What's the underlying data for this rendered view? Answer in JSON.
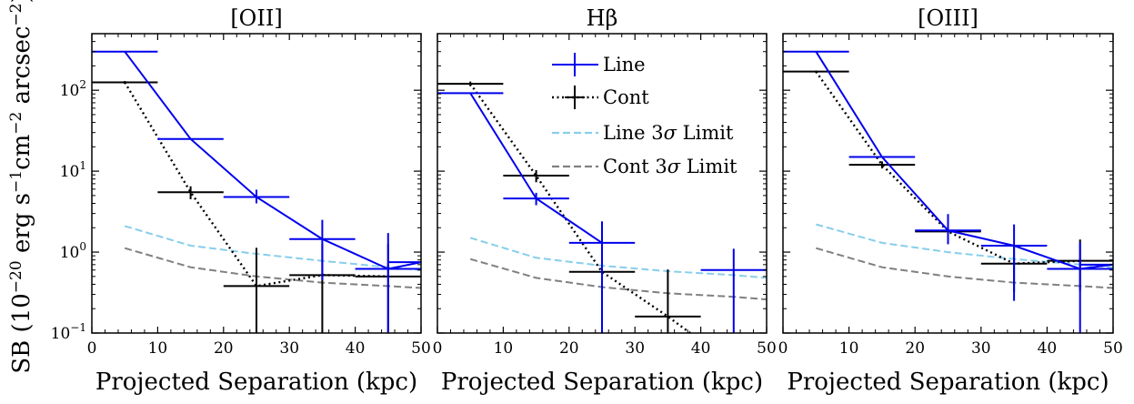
{
  "figure": {
    "ylabel": "SB (10",
    "ylabel_exp1": "−20",
    "ylabel_mid": " erg s",
    "ylabel_exp2": "−1",
    "ylabel_mid2": "cm",
    "ylabel_exp3": "−2",
    "ylabel_end": " arcsec",
    "ylabel_exp4": "−2",
    "ylabel_close": ")",
    "xlabel": "Projected Separation (kpc)"
  },
  "colors": {
    "line": "#0000ee",
    "cont": "#000000",
    "line_limit": "#87ceeb",
    "cont_limit": "#808080"
  },
  "legend": {
    "line": "Line",
    "cont": "Cont",
    "line_limit_pre": "Line 3",
    "line_limit_sym": "σ",
    "line_limit_post": " Limit",
    "cont_limit_pre": "Cont 3",
    "cont_limit_sym": "σ",
    "cont_limit_post": " Limit"
  },
  "chart_data": [
    {
      "type": "line",
      "title": "[OII]",
      "xlabel": "Projected Separation (kpc)",
      "ylabel": "SB (10^-20 erg s^-1 cm^-2 arcsec^-2)",
      "xlim": [
        0,
        50
      ],
      "ylim": [
        0.1,
        500
      ],
      "yscale": "log",
      "xticks": [
        0,
        10,
        20,
        30,
        40,
        50
      ],
      "yticks": [
        0.1,
        1,
        10,
        100
      ],
      "series": [
        {
          "key": "line",
          "name": "Line",
          "x": [
            5,
            15,
            25,
            35,
            45,
            50
          ],
          "y": [
            300,
            25,
            4.8,
            1.45,
            0.62,
            0.75
          ],
          "xerr": [
            5,
            5,
            5,
            5,
            5,
            5
          ],
          "yerr_low": [
            0,
            0,
            0.8,
            1.0,
            0.52,
            0
          ],
          "yerr_high": [
            0,
            0,
            1.1,
            1.05,
            1.1,
            0
          ]
        },
        {
          "key": "cont",
          "name": "Cont",
          "x": [
            5,
            15,
            25,
            35,
            45
          ],
          "y": [
            125,
            5.5,
            0.38,
            0.52,
            0.5
          ],
          "xerr": [
            5,
            5,
            5,
            5,
            5
          ],
          "yerr_low": [
            5,
            1.0,
            0.3,
            0.43,
            0.4
          ],
          "yerr_high": [
            5,
            1.0,
            0.75,
            0.73,
            0.75
          ]
        },
        {
          "key": "line_limit",
          "name": "Line 3σ Limit",
          "x": [
            5,
            15,
            25,
            35,
            45,
            50
          ],
          "y": [
            2.1,
            1.2,
            0.95,
            0.78,
            0.65,
            0.6
          ]
        },
        {
          "key": "cont_limit",
          "name": "Cont 3σ Limit",
          "x": [
            5,
            15,
            25,
            35,
            45,
            50
          ],
          "y": [
            1.12,
            0.65,
            0.5,
            0.42,
            0.38,
            0.36
          ]
        }
      ]
    },
    {
      "type": "line",
      "title": "Hβ",
      "xlabel": "Projected Separation (kpc)",
      "xlim": [
        0,
        50
      ],
      "ylim": [
        0.1,
        500
      ],
      "yscale": "log",
      "xticks": [
        0,
        10,
        20,
        30,
        40,
        50
      ],
      "series": [
        {
          "key": "line",
          "name": "Line",
          "x": [
            5,
            15,
            25
          ],
          "y": [
            92,
            4.6,
            1.3
          ],
          "xerr": [
            5,
            5,
            5
          ],
          "yerr_low": [
            0,
            0.8,
            1.25
          ],
          "yerr_high": [
            0,
            0.8,
            1.1
          ]
        },
        {
          "key": "line_pt",
          "name": "Line",
          "x": [
            45
          ],
          "y": [
            0.6
          ],
          "xerr": [
            5
          ],
          "yerr_low": [
            0.55
          ],
          "yerr_high": [
            0.5
          ]
        },
        {
          "key": "cont",
          "name": "Cont",
          "x": [
            5,
            15,
            25,
            35,
            40
          ],
          "y": [
            120,
            8.8,
            0.57,
            0.16,
            0.08
          ],
          "xerr": [
            5,
            5,
            5,
            5,
            0
          ],
          "yerr_low": [
            8,
            1.5,
            0.5,
            0.1,
            0
          ],
          "yerr_high": [
            8,
            1.5,
            0.6,
            0.45,
            0
          ]
        },
        {
          "key": "line_limit",
          "name": "Line 3σ Limit",
          "x": [
            5,
            15,
            25,
            35,
            45,
            50
          ],
          "y": [
            1.5,
            0.85,
            0.68,
            0.58,
            0.52,
            0.48
          ]
        },
        {
          "key": "cont_limit",
          "name": "Cont 3σ Limit",
          "x": [
            5,
            15,
            25,
            35,
            45,
            50
          ],
          "y": [
            0.82,
            0.48,
            0.37,
            0.31,
            0.28,
            0.26
          ]
        }
      ]
    },
    {
      "type": "line",
      "title": "[OIII]",
      "xlabel": "Projected Separation (kpc)",
      "xlim": [
        0,
        50
      ],
      "ylim": [
        0.1,
        500
      ],
      "yscale": "log",
      "xticks": [
        0,
        10,
        20,
        30,
        40,
        50
      ],
      "series": [
        {
          "key": "line",
          "name": "Line",
          "x": [
            5,
            15,
            25,
            35,
            45,
            50
          ],
          "y": [
            300,
            15,
            1.85,
            1.2,
            0.62,
            0.7
          ],
          "xerr": [
            5,
            5,
            5,
            5,
            5,
            5
          ],
          "yerr_low": [
            0,
            0,
            0.6,
            0.95,
            0.55,
            0
          ],
          "yerr_high": [
            0,
            0,
            1.1,
            1.0,
            0.7,
            0
          ]
        },
        {
          "key": "cont",
          "name": "Cont",
          "x": [
            5,
            15,
            25,
            35,
            45
          ],
          "y": [
            170,
            12,
            1.8,
            0.72,
            0.78
          ],
          "xerr": [
            5,
            5,
            5,
            5,
            5
          ],
          "yerr_low": [
            5,
            1.2,
            0.5,
            0.4,
            0.45
          ],
          "yerr_high": [
            5,
            1.2,
            0.5,
            0.5,
            0.65
          ]
        },
        {
          "key": "line_limit",
          "name": "Line 3σ Limit",
          "x": [
            5,
            15,
            25,
            35,
            45,
            50
          ],
          "y": [
            2.2,
            1.3,
            1.0,
            0.82,
            0.7,
            0.65
          ]
        },
        {
          "key": "cont_limit",
          "name": "Cont 3σ Limit",
          "x": [
            5,
            15,
            25,
            35,
            45,
            50
          ],
          "y": [
            1.12,
            0.65,
            0.5,
            0.42,
            0.38,
            0.36
          ]
        }
      ]
    }
  ]
}
